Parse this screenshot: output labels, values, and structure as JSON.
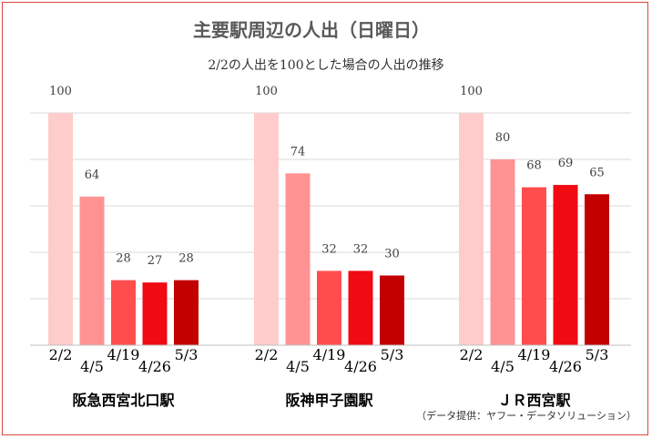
{
  "chart_data": {
    "type": "bar",
    "title": "主要駅周辺の人出（日曜日）",
    "subtitle": "2/2の人出を100とした場合の人出の推移",
    "source_note": "（データ提供：ヤフー・データソリューション）",
    "categories": [
      "2/2",
      "4/5",
      "4/19",
      "4/26",
      "5/3"
    ],
    "series": [
      {
        "name": "阪急西宮北口駅",
        "values": [
          100,
          64,
          28,
          27,
          28
        ]
      },
      {
        "name": "阪神甲子園駅",
        "values": [
          100,
          74,
          32,
          32,
          30
        ]
      },
      {
        "name": "ＪＲ西宮駅",
        "values": [
          100,
          80,
          68,
          69,
          65
        ]
      }
    ],
    "ylim": [
      0,
      100
    ],
    "grid": true,
    "bar_colors": [
      "#ffcccc",
      "#ff9393",
      "#ff4d4d",
      "#f00a12",
      "#c20000"
    ],
    "grid_color": "#d9d9d9",
    "frame_color": "#d9473f"
  }
}
